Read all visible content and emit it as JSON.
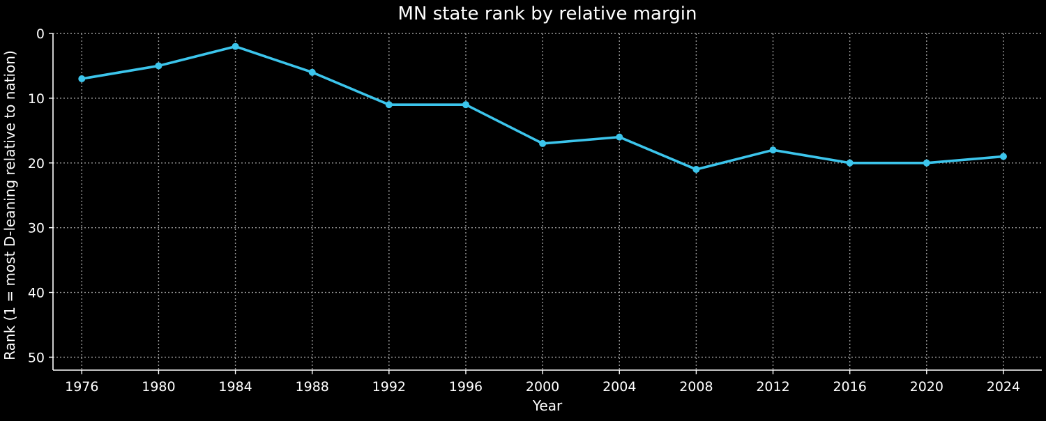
{
  "chart_data": {
    "type": "line",
    "title": "MN state rank by relative margin",
    "xlabel": "Year",
    "ylabel": "Rank (1 = most D-leaning relative to nation)",
    "x": [
      1976,
      1980,
      1984,
      1988,
      1992,
      1996,
      2000,
      2004,
      2008,
      2012,
      2016,
      2020,
      2024
    ],
    "series": [
      {
        "values": [
          7,
          5,
          2,
          6,
          11,
          11,
          17,
          16,
          21,
          18,
          20,
          20,
          19
        ]
      }
    ],
    "xticks": [
      "1976",
      "1980",
      "1984",
      "1988",
      "1992",
      "1996",
      "2000",
      "2004",
      "2008",
      "2012",
      "2016",
      "2020",
      "2024"
    ],
    "yticks": [
      "0",
      "10",
      "20",
      "30",
      "40",
      "50"
    ],
    "ylim": [
      0,
      52
    ],
    "y_inverted": true,
    "grid": true,
    "colors": {
      "background": "#000000",
      "line": "#3cc5ec",
      "text": "#ffffff",
      "grid": "#9a9a9a"
    }
  }
}
